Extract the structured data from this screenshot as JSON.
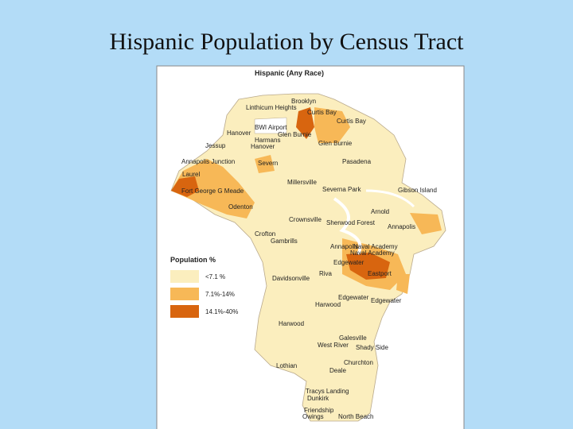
{
  "title": "Hispanic Population by Census Tract",
  "map": {
    "title": "Hispanic (Any Race)",
    "legend": {
      "title": "Population %",
      "items": [
        {
          "label": "<7.1 %",
          "color": "#fbeebe"
        },
        {
          "label": "7.1%-14%",
          "color": "#f7b857"
        },
        {
          "label": "14.1%-40%",
          "color": "#d8650f"
        }
      ]
    },
    "places": [
      "Brooklyn",
      "Linthicum Heights",
      "Curtis Bay",
      "Curtis Bay",
      "BWI Airport",
      "Hanover",
      "Glen Burnie",
      "Harmans",
      "Hanover",
      "Jessup",
      "Glen Burnie",
      "Annapolis Junction",
      "Severn",
      "Pasadena",
      "Laurel",
      "Fort George G Meade",
      "Millersville",
      "Severna Park",
      "Gibson Island",
      "Odenton",
      "Arnold",
      "Crownsville",
      "Sherwood Forest",
      "Annapolis",
      "Crofton",
      "Gambrills",
      "Annapolis",
      "Naval Academy",
      "Naval Academy",
      "Edgewater",
      "Eastport",
      "Riva",
      "Davidsonville",
      "Edgewater",
      "Edgewater",
      "Harwood",
      "Harwood",
      "Galesville",
      "West River",
      "Shady Side",
      "Churchton",
      "Lothian",
      "Deale",
      "Tracys Landing",
      "Dunkirk",
      "Friendship",
      "Owings",
      "North Beach"
    ]
  }
}
